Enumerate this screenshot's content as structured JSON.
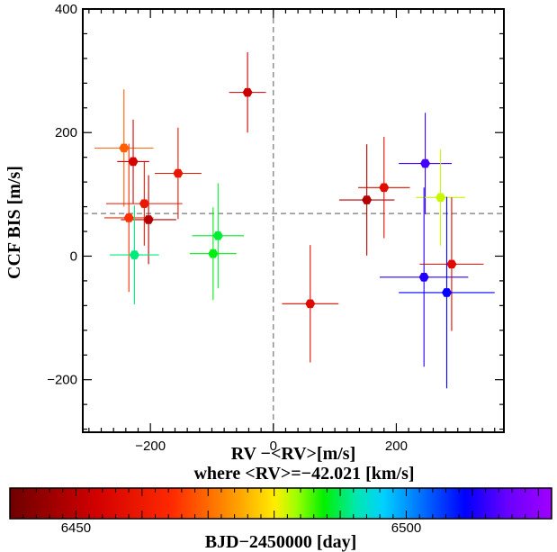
{
  "chart_data": {
    "type": "scatter",
    "xlabel": "RV −<RV>[m/s]",
    "xlabel_line2": "where <RV>=−42.021 [km/s]",
    "ylabel": "CCF BIS [m/s]",
    "xlim": [
      -310,
      375
    ],
    "ylim": [
      -285,
      400
    ],
    "x_ticks": [
      {
        "value": -200,
        "label": "−200"
      },
      {
        "value": 0,
        "label": "0"
      },
      {
        "value": 200,
        "label": "200"
      }
    ],
    "y_ticks": [
      {
        "value": -200,
        "label": "−200"
      },
      {
        "value": 0,
        "label": "0"
      },
      {
        "value": 200,
        "label": "200"
      },
      {
        "value": 400,
        "label": "400"
      }
    ],
    "reference_lines": {
      "vertical_x": 0,
      "horizontal_y": 69
    },
    "colorbar": {
      "label": "BJD−2450000 [day]",
      "range": [
        6440,
        6522
      ],
      "ticks": [
        {
          "value": 6450,
          "label": "6450"
        },
        {
          "value": 6500,
          "label": "6500"
        }
      ]
    },
    "points": [
      {
        "x": -243,
        "y": 175,
        "xerr": 48,
        "yerr": 95,
        "t": 6469
      },
      {
        "x": -228,
        "y": 153,
        "xerr": 26,
        "yerr": 68,
        "t": 6454
      },
      {
        "x": -210,
        "y": 85,
        "xerr": 62,
        "yerr": 68,
        "t": 6459
      },
      {
        "x": -235,
        "y": 62,
        "xerr": 40,
        "yerr": 120,
        "t": 6465
      },
      {
        "x": -203,
        "y": 59,
        "xerr": 45,
        "yerr": 72,
        "t": 6449
      },
      {
        "x": -226,
        "y": 2,
        "xerr": 40,
        "yerr": 80,
        "t": 6491
      },
      {
        "x": -155,
        "y": 134,
        "xerr": 38,
        "yerr": 74,
        "t": 6459
      },
      {
        "x": -90,
        "y": 33,
        "xerr": 42,
        "yerr": 85,
        "t": 6489
      },
      {
        "x": -98,
        "y": 4,
        "xerr": 38,
        "yerr": 75,
        "t": 6488
      },
      {
        "x": -42,
        "y": 265,
        "xerr": 30,
        "yerr": 65,
        "t": 6452
      },
      {
        "x": 60,
        "y": -77,
        "xerr": 46,
        "yerr": 95,
        "t": 6456
      },
      {
        "x": 152,
        "y": 91,
        "xerr": 45,
        "yerr": 90,
        "t": 6449
      },
      {
        "x": 180,
        "y": 111,
        "xerr": 42,
        "yerr": 82,
        "t": 6457
      },
      {
        "x": 247,
        "y": 150,
        "xerr": 43,
        "yerr": 82,
        "t": 6513
      },
      {
        "x": 272,
        "y": 95,
        "xerr": 40,
        "yerr": 78,
        "t": 6482
      },
      {
        "x": 245,
        "y": -34,
        "xerr": 72,
        "yerr": 145,
        "t": 6511
      },
      {
        "x": 290,
        "y": -13,
        "xerr": 52,
        "yerr": 108,
        "t": 6456
      },
      {
        "x": 282,
        "y": -59,
        "xerr": 78,
        "yerr": 155,
        "t": 6509
      }
    ]
  }
}
